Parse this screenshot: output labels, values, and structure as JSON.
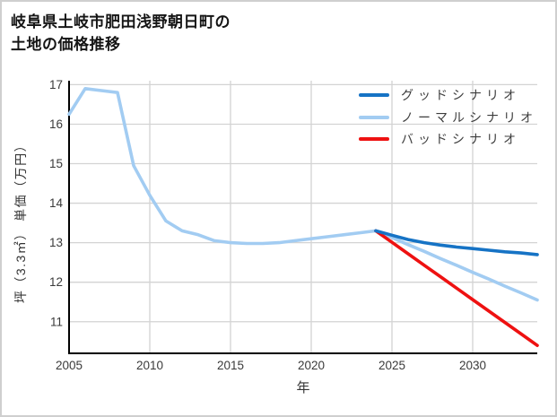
{
  "title": {
    "line1": "岐阜県土岐市肥田浅野朝日町の",
    "line2": "土地の価格推移"
  },
  "chart_data": {
    "type": "line",
    "title": "岐阜県土岐市肥田浅野朝日町の土地の価格推移",
    "xlabel": "年",
    "ylabel": "坪（3.3㎡） 単価（万円）",
    "xlim": [
      2005,
      2034
    ],
    "ylim": [
      10.2,
      17.1
    ],
    "xticks": [
      2005,
      2010,
      2015,
      2020,
      2025,
      2030
    ],
    "yticks": [
      11,
      12,
      13,
      14,
      15,
      16,
      17
    ],
    "grid": true,
    "legend_position": "upper right",
    "colors": {
      "grid": "#d3d3d3",
      "axis": "#000000",
      "tick_text": "#3a3a3a",
      "border": "#cfcfcf"
    },
    "series": [
      {
        "id": "good",
        "name": "グッドシナリオ",
        "color": "#1673c5",
        "zorder": 3,
        "x": [
          2024,
          2025,
          2026,
          2027,
          2028,
          2029,
          2030,
          2031,
          2032,
          2033,
          2034
        ],
        "y": [
          13.3,
          13.19,
          13.08,
          13.0,
          12.94,
          12.89,
          12.85,
          12.81,
          12.77,
          12.74,
          12.7
        ]
      },
      {
        "id": "normal",
        "name": "ノーマルシナリオ",
        "color": "#a2ccf2",
        "zorder": 1,
        "x": [
          2005,
          2006,
          2007,
          2008,
          2009,
          2010,
          2011,
          2012,
          2013,
          2014,
          2015,
          2016,
          2017,
          2018,
          2019,
          2020,
          2021,
          2022,
          2023,
          2024,
          2025,
          2026,
          2027,
          2028,
          2029,
          2030,
          2031,
          2032,
          2033,
          2034
        ],
        "y": [
          16.25,
          16.9,
          16.85,
          16.8,
          14.95,
          14.2,
          13.55,
          13.3,
          13.2,
          13.05,
          13.0,
          12.98,
          12.98,
          13.0,
          13.05,
          13.1,
          13.15,
          13.2,
          13.25,
          13.3,
          13.13,
          12.95,
          12.78,
          12.6,
          12.43,
          12.25,
          12.08,
          11.9,
          11.73,
          11.55
        ]
      },
      {
        "id": "bad",
        "name": "バッドシナリオ",
        "color": "#ee1111",
        "zorder": 2,
        "x": [
          2024,
          2025,
          2026,
          2027,
          2028,
          2029,
          2030,
          2031,
          2032,
          2033,
          2034
        ],
        "y": [
          13.3,
          13.01,
          12.72,
          12.43,
          12.14,
          11.85,
          11.56,
          11.27,
          10.98,
          10.69,
          10.4
        ]
      }
    ]
  }
}
